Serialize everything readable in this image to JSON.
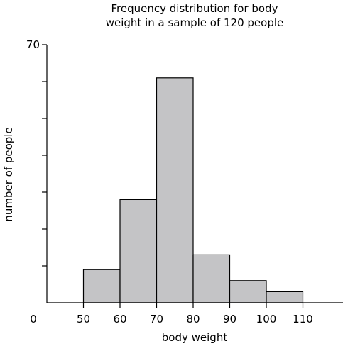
{
  "chart_data": {
    "type": "histogram",
    "title_lines": [
      "Frequency distribution for body",
      "weight in a sample of 120 people"
    ],
    "xlabel": "body weight",
    "ylabel": "number of people",
    "xlim": [
      40,
      120
    ],
    "ylim": [
      0,
      70
    ],
    "x_ticks": [
      50,
      60,
      70,
      80,
      90,
      100,
      110
    ],
    "x_origin_label": "0",
    "y_tick_values": [
      10,
      20,
      30,
      40,
      50,
      60,
      70
    ],
    "y_tick_labels": {
      "70": "70"
    },
    "bins": [
      {
        "start": 50,
        "end": 60,
        "count": 9
      },
      {
        "start": 60,
        "end": 70,
        "count": 28
      },
      {
        "start": 70,
        "end": 80,
        "count": 61
      },
      {
        "start": 80,
        "end": 90,
        "count": 13
      },
      {
        "start": 90,
        "end": 100,
        "count": 6
      },
      {
        "start": 100,
        "end": 110,
        "count": 3
      }
    ],
    "bar_color": "#c4c4c6",
    "bar_stroke": "#000000",
    "grid": false
  }
}
